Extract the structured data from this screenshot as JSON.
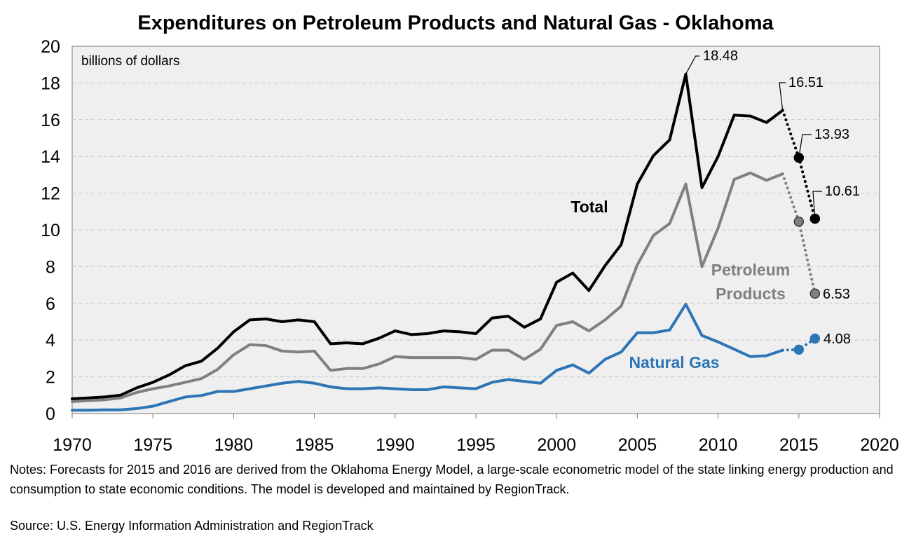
{
  "chart_data": {
    "type": "line",
    "title": "Expenditures on Petroleum Products and Natural Gas - Oklahoma",
    "ylabel": "billions of dollars",
    "xlim": [
      1970,
      2020
    ],
    "ylim": [
      0,
      20
    ],
    "x_ticks": [
      1970,
      1975,
      1980,
      1985,
      1990,
      1995,
      2000,
      2005,
      2010,
      2015,
      2020
    ],
    "y_ticks": [
      0,
      2,
      4,
      6,
      8,
      10,
      12,
      14,
      16,
      18,
      20
    ],
    "grid": true,
    "series": [
      {
        "name": "Total",
        "color": "#000000",
        "x": [
          1970,
          1971,
          1972,
          1973,
          1974,
          1975,
          1976,
          1977,
          1978,
          1979,
          1980,
          1981,
          1982,
          1983,
          1984,
          1985,
          1986,
          1987,
          1988,
          1989,
          1990,
          1991,
          1992,
          1993,
          1994,
          1995,
          1996,
          1997,
          1998,
          1999,
          2000,
          2001,
          2002,
          2003,
          2004,
          2005,
          2006,
          2007,
          2008,
          2009,
          2010,
          2011,
          2012,
          2013,
          2014
        ],
        "values": [
          0.8,
          0.85,
          0.9,
          1.0,
          1.4,
          1.7,
          2.1,
          2.6,
          2.85,
          3.55,
          4.45,
          5.1,
          5.15,
          5.0,
          5.1,
          5.0,
          3.8,
          3.85,
          3.8,
          4.1,
          4.5,
          4.3,
          4.35,
          4.5,
          4.45,
          4.35,
          5.2,
          5.3,
          4.7,
          5.15,
          7.15,
          7.65,
          6.7,
          8.05,
          9.2,
          12.5,
          14.05,
          14.9,
          18.48,
          12.3,
          14.0,
          16.25,
          16.2,
          15.85,
          16.51
        ],
        "forecast": {
          "x": [
            2015,
            2016
          ],
          "values": [
            13.93,
            10.61
          ]
        }
      },
      {
        "name": "Petroleum Products",
        "color": "#808080",
        "x": [
          1970,
          1971,
          1972,
          1973,
          1974,
          1975,
          1976,
          1977,
          1978,
          1979,
          1980,
          1981,
          1982,
          1983,
          1984,
          1985,
          1986,
          1987,
          1988,
          1989,
          1990,
          1991,
          1992,
          1993,
          1994,
          1995,
          1996,
          1997,
          1998,
          1999,
          2000,
          2001,
          2002,
          2003,
          2004,
          2005,
          2006,
          2007,
          2008,
          2009,
          2010,
          2011,
          2012,
          2013,
          2014
        ],
        "values": [
          0.65,
          0.7,
          0.75,
          0.85,
          1.15,
          1.35,
          1.5,
          1.7,
          1.9,
          2.4,
          3.2,
          3.75,
          3.7,
          3.4,
          3.35,
          3.4,
          2.35,
          2.45,
          2.45,
          2.7,
          3.1,
          3.05,
          3.05,
          3.05,
          3.05,
          2.95,
          3.45,
          3.45,
          2.95,
          3.5,
          4.8,
          5.0,
          4.5,
          5.1,
          5.85,
          8.1,
          9.7,
          10.35,
          12.5,
          8.0,
          10.1,
          12.75,
          13.1,
          12.7,
          13.05
        ],
        "forecast": {
          "x": [
            2015,
            2016
          ],
          "values": [
            10.45,
            6.53
          ]
        }
      },
      {
        "name": "Natural Gas",
        "color": "#2E75B6",
        "x": [
          1970,
          1971,
          1972,
          1973,
          1974,
          1975,
          1976,
          1977,
          1978,
          1979,
          1980,
          1981,
          1982,
          1983,
          1984,
          1985,
          1986,
          1987,
          1988,
          1989,
          1990,
          1991,
          1992,
          1993,
          1994,
          1995,
          1996,
          1997,
          1998,
          1999,
          2000,
          2001,
          2002,
          2003,
          2004,
          2005,
          2006,
          2007,
          2008,
          2009,
          2010,
          2011,
          2012,
          2013,
          2014
        ],
        "values": [
          0.18,
          0.18,
          0.2,
          0.2,
          0.27,
          0.4,
          0.65,
          0.9,
          0.98,
          1.2,
          1.2,
          1.35,
          1.5,
          1.65,
          1.75,
          1.65,
          1.45,
          1.35,
          1.35,
          1.4,
          1.35,
          1.3,
          1.3,
          1.45,
          1.4,
          1.35,
          1.7,
          1.85,
          1.75,
          1.65,
          2.35,
          2.65,
          2.2,
          2.95,
          3.35,
          4.4,
          4.4,
          4.55,
          5.95,
          4.25,
          3.9,
          3.5,
          3.1,
          3.15,
          3.45
        ],
        "forecast": {
          "x": [
            2015,
            2016
          ],
          "values": [
            3.48,
            4.08
          ]
        }
      }
    ],
    "series_labels": [
      {
        "text": "Total",
        "color": "#000000"
      },
      {
        "text": "Petroleum",
        "color": "#808080"
      },
      {
        "text": "Products",
        "color": "#808080"
      },
      {
        "text": "Natural Gas",
        "color": "#2E75B6"
      }
    ],
    "annotations": [
      "18.48",
      "16.51",
      "13.93",
      "10.61",
      "6.53",
      "4.08"
    ]
  },
  "notes": "Notes: Forecasts for 2015 and 2016 are derived from the Oklahoma Energy Model, a large-scale econometric model of the state linking energy production and consumption to state economic conditions. The model is developed and maintained by RegionTrack.",
  "source": "Source: U.S. Energy Information Administration and RegionTrack"
}
